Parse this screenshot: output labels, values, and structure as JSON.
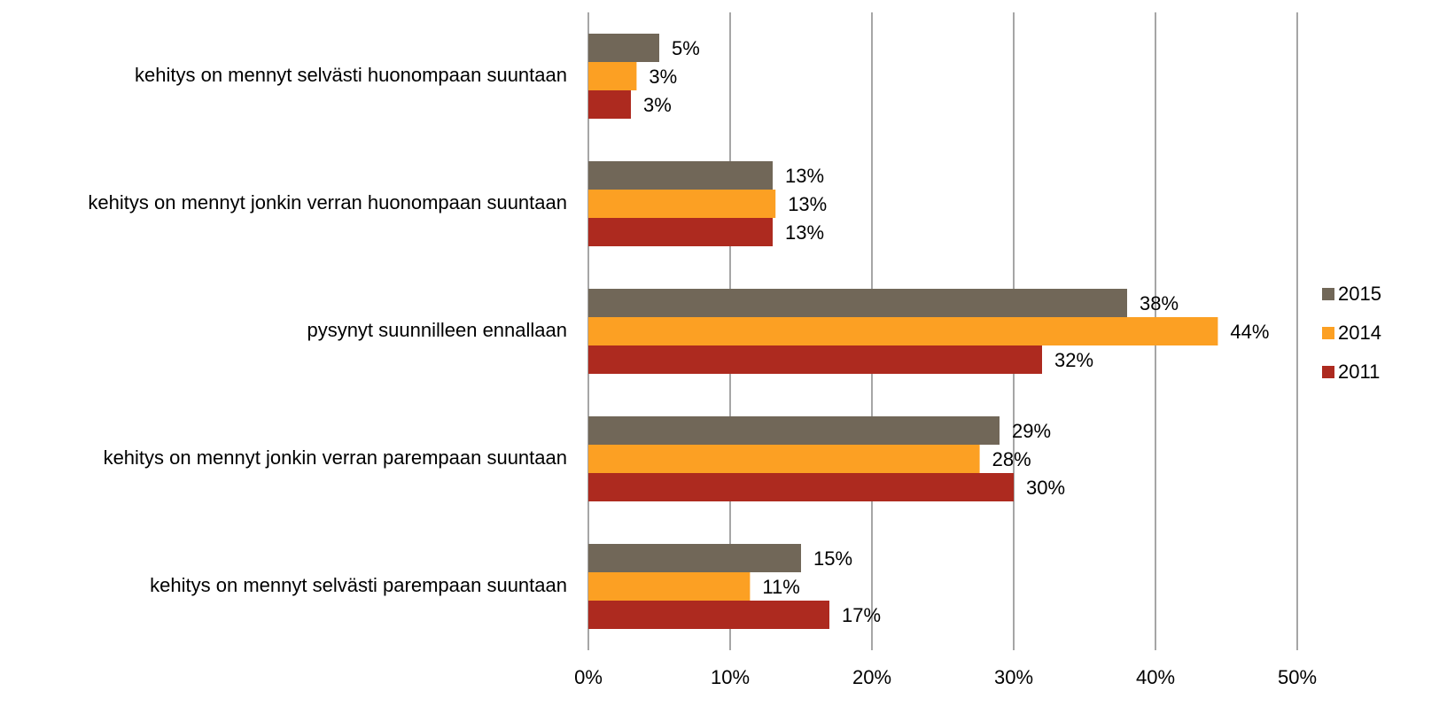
{
  "chart_data": {
    "type": "hbar",
    "categories": [
      "kehitys on mennyt selvästi huonompaan suuntaan",
      "kehitys on mennyt jonkin verran huonompaan suuntaan",
      "pysynyt suunnilleen ennallaan",
      "kehitys on mennyt jonkin verran parempaan suuntaan",
      "kehitys on mennyt selvästi parempaan suuntaan"
    ],
    "series": [
      {
        "name": "2015",
        "color": "#716758",
        "values": [
          5,
          13,
          38,
          29,
          15
        ],
        "value_labels": [
          "5%",
          "13%",
          "38%",
          "29%",
          "15%"
        ]
      },
      {
        "name": "2014",
        "color": "#fca023",
        "values": [
          3.4,
          13.2,
          44.4,
          27.6,
          11.4
        ],
        "value_labels": [
          "3%",
          "13%",
          "44%",
          "28%",
          "11%"
        ]
      },
      {
        "name": "2011",
        "color": "#ad2a1f",
        "values": [
          3,
          13,
          32,
          30,
          17
        ],
        "value_labels": [
          "3%",
          "13%",
          "32%",
          "30%",
          "17%"
        ]
      }
    ],
    "xlim": [
      0,
      50
    ],
    "xticks": [
      {
        "value": 0,
        "label": "0%"
      },
      {
        "value": 10,
        "label": "10%"
      },
      {
        "value": 20,
        "label": "20%"
      },
      {
        "value": 30,
        "label": "30%"
      },
      {
        "value": 40,
        "label": "40%"
      },
      {
        "value": 50,
        "label": "50%"
      }
    ],
    "grid": true,
    "legend": "right"
  }
}
